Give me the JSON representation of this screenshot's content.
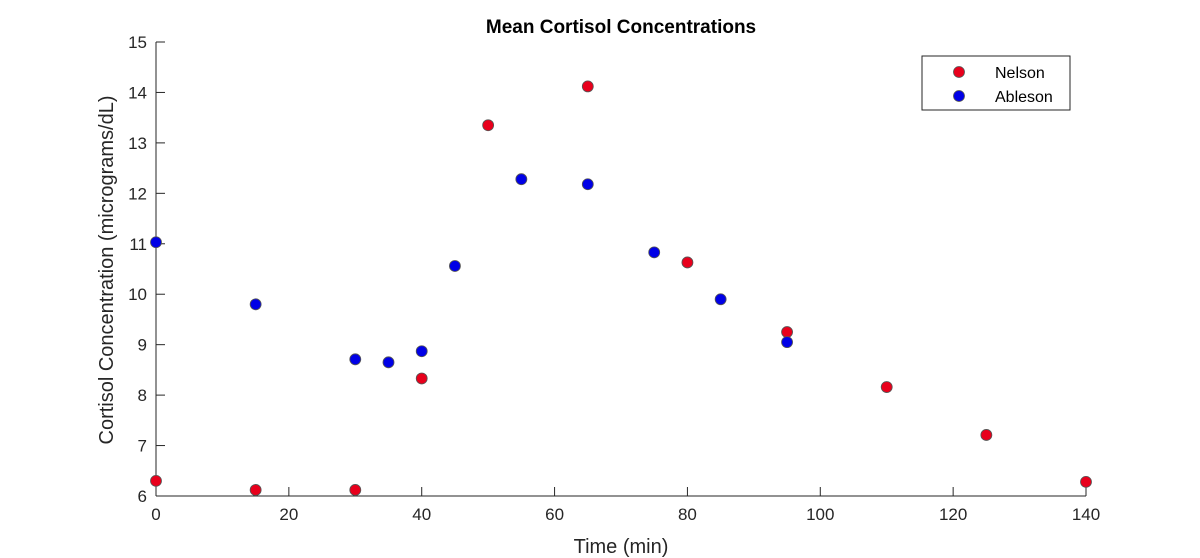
{
  "chart_data": {
    "type": "scatter",
    "title": "Mean Cortisol Concentrations",
    "xlabel": "Time (min)",
    "ylabel": "Cortisol Concentration (micrograms/dL)",
    "xlim": [
      0,
      140
    ],
    "ylim": [
      6,
      15
    ],
    "xticks": [
      0,
      20,
      40,
      60,
      80,
      100,
      120,
      140
    ],
    "yticks": [
      6,
      7,
      8,
      9,
      10,
      11,
      12,
      13,
      14,
      15
    ],
    "grid": false,
    "legend_position": "top-right",
    "series": [
      {
        "name": "Nelson",
        "color": "#e8001c",
        "x": [
          0,
          15,
          30,
          40,
          50,
          65,
          80,
          95,
          110,
          125,
          140
        ],
        "y": [
          6.3,
          6.12,
          6.12,
          8.33,
          13.35,
          14.12,
          10.63,
          9.25,
          8.16,
          7.21,
          6.28
        ]
      },
      {
        "name": "Ableson",
        "color": "#0000e6",
        "x": [
          0,
          15,
          30,
          35,
          40,
          45,
          55,
          65,
          75,
          85,
          95
        ],
        "y": [
          11.03,
          9.8,
          8.71,
          8.65,
          8.87,
          10.56,
          12.28,
          12.18,
          10.83,
          9.9,
          9.05
        ]
      }
    ]
  }
}
